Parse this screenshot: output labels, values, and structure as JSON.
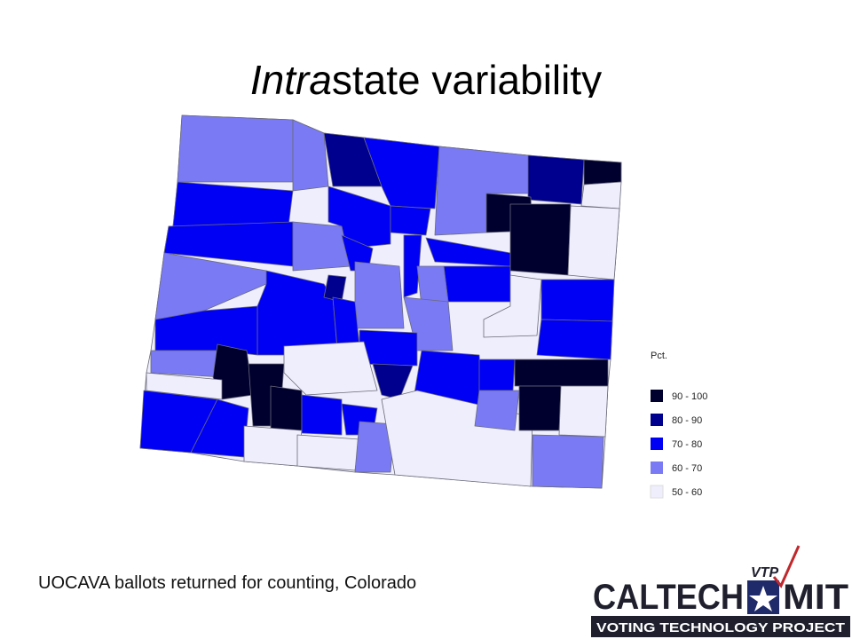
{
  "title": {
    "italic": "Intra",
    "rest": "state variability"
  },
  "legend": {
    "title": "Pct.",
    "items": [
      "90 - 100",
      "80 - 90",
      "70 - 80",
      "60 - 70",
      "50 - 60"
    ]
  },
  "caption": "UOCAVA ballots returned for counting, Colorado",
  "logo": {
    "left": "CALTECH",
    "badge": "VTP",
    "right": "MIT",
    "tagline": "VOTING TECHNOLOGY PROJECT"
  }
}
